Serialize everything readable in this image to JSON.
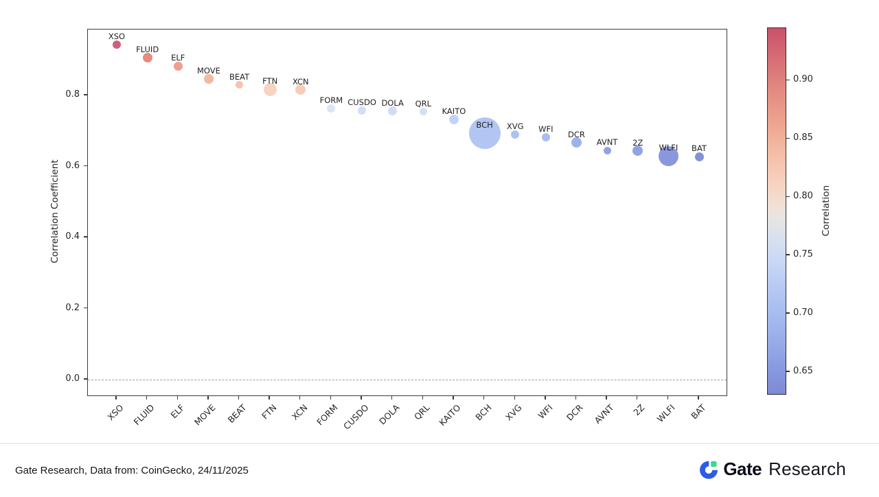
{
  "chart_data": {
    "type": "scatter",
    "title": "",
    "xlabel": "",
    "ylabel": "Correlation Coefficient",
    "ylim": [
      -0.05,
      0.985
    ],
    "grid": false,
    "zero_reference_line": 0.0,
    "yticks": [
      0.0,
      0.2,
      0.4,
      0.6,
      0.8
    ],
    "ytick_labels": [
      "0.0",
      "0.2",
      "0.4",
      "0.6",
      "0.8"
    ],
    "categories": [
      "XSO",
      "FLUID",
      "ELF",
      "MOVE",
      "BEAT",
      "FTN",
      "XCN",
      "FORM",
      "CUSDO",
      "DOLA",
      "QRL",
      "KAITO",
      "BCH",
      "XVG",
      "WFI",
      "DCR",
      "AVNT",
      "2Z",
      "WLFI",
      "BAT"
    ],
    "points": [
      {
        "label": "XSO",
        "correlation": 0.943,
        "radius_px": 6,
        "color": "#d05f7e"
      },
      {
        "label": "FLUID",
        "correlation": 0.906,
        "radius_px": 7,
        "color": "#e68b7e"
      },
      {
        "label": "ELF",
        "correlation": 0.883,
        "radius_px": 6.5,
        "color": "#ef9f8b"
      },
      {
        "label": "MOVE",
        "correlation": 0.846,
        "radius_px": 7,
        "color": "#f4b89f"
      },
      {
        "label": "BEAT",
        "correlation": 0.829,
        "radius_px": 5.5,
        "color": "#f6c5ae"
      },
      {
        "label": "FTN",
        "correlation": 0.817,
        "radius_px": 9.5,
        "color": "#f8d3c0"
      },
      {
        "label": "XCN",
        "correlation": 0.816,
        "radius_px": 7.5,
        "color": "#f7ccb8"
      },
      {
        "label": "FORM",
        "correlation": 0.763,
        "radius_px": 6,
        "color": "#dde4f6"
      },
      {
        "label": "CUSDO",
        "correlation": 0.758,
        "radius_px": 6,
        "color": "#d2def7"
      },
      {
        "label": "DOLA",
        "correlation": 0.756,
        "radius_px": 6.5,
        "color": "#d0dcf6"
      },
      {
        "label": "QRL",
        "correlation": 0.754,
        "radius_px": 5.5,
        "color": "#d4dff7"
      },
      {
        "label": "KAITO",
        "correlation": 0.732,
        "radius_px": 7,
        "color": "#c3d3f6"
      },
      {
        "label": "BCH",
        "correlation": 0.694,
        "radius_px": 23,
        "color": "#b3c6f3"
      },
      {
        "label": "XVG",
        "correlation": 0.69,
        "radius_px": 6,
        "color": "#aec2f1"
      },
      {
        "label": "WFI",
        "correlation": 0.683,
        "radius_px": 6,
        "color": "#a9bdf0"
      },
      {
        "label": "DCR",
        "correlation": 0.667,
        "radius_px": 7.5,
        "color": "#9db2ec"
      },
      {
        "label": "AVNT",
        "correlation": 0.645,
        "radius_px": 5.5,
        "color": "#90a3e4"
      },
      {
        "label": "2Z",
        "correlation": 0.644,
        "radius_px": 7.5,
        "color": "#90a3e4"
      },
      {
        "label": "WLFI",
        "correlation": 0.629,
        "radius_px": 14.5,
        "color": "#8b97dd"
      },
      {
        "label": "BAT",
        "correlation": 0.628,
        "radius_px": 6.5,
        "color": "#8491da"
      }
    ],
    "colorbar": {
      "label": "Correlation",
      "vmin": 0.63,
      "vmax": 0.945,
      "ticks": [
        0.9,
        0.85,
        0.8,
        0.75,
        0.7,
        0.65
      ],
      "tick_labels": [
        "0.90",
        "0.85",
        "0.80",
        "0.75",
        "0.70",
        "0.65"
      ],
      "colormap": "coolwarm",
      "gradient_stops": [
        "#ca5169 0%",
        "#d76f77 9%",
        "#e38a80 17%",
        "#eea490 26%",
        "#f4bda6 34%",
        "#f7d1bf 42%",
        "#f2dfd4 48%",
        "#e7e5e2 52%",
        "#d9e1ee 57%",
        "#cbd9f6 63%",
        "#b7c9f3 71%",
        "#a5bbef 79%",
        "#95a9e7 87%",
        "#8697de 94%",
        "#7e8ad6 100%"
      ]
    }
  },
  "footer": {
    "source_text": "Gate Research, Data from: CoinGecko, 24/11/2025",
    "logo": {
      "brand_bold": "Gate",
      "brand_regular": "Research",
      "icon_blue": "#2b5ce5",
      "icon_green": "#3bd98f"
    }
  },
  "colors": {
    "background": "#ffffff",
    "axis_text": "#262626",
    "spine": "#3a3a3a",
    "zero_line": "#9a9a9a",
    "divider": "#eeeeee"
  }
}
